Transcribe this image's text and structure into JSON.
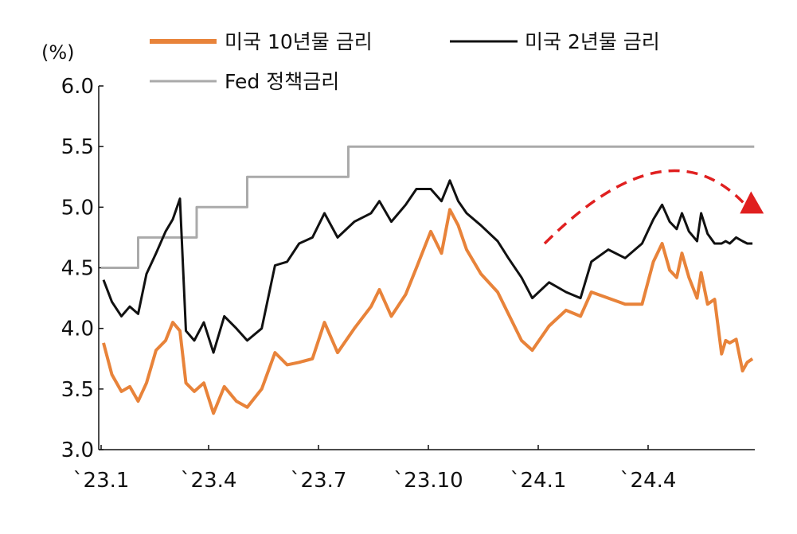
{
  "chart_data": {
    "type": "line",
    "unit_label": "(%)",
    "ylim": [
      3.0,
      6.0
    ],
    "yticks": [
      "6.0",
      "5.5",
      "5.0",
      "4.5",
      "4.0",
      "3.5",
      "3.0"
    ],
    "x_ticks": [
      "`23.1",
      "`23.4",
      "`23.7",
      "`23.10",
      "`24.1",
      "`24.4"
    ],
    "x_range_months": [
      "2023-01",
      "2024-09"
    ],
    "grid": false,
    "legend_placement": "top",
    "series": [
      {
        "name": "미국 10년물 금리",
        "color": "#E8833A",
        "points": [
          [
            "2023-01-03",
            3.88
          ],
          [
            "2023-01-10",
            3.62
          ],
          [
            "2023-01-18",
            3.48
          ],
          [
            "2023-01-25",
            3.52
          ],
          [
            "2023-02-01",
            3.4
          ],
          [
            "2023-02-08",
            3.55
          ],
          [
            "2023-02-16",
            3.82
          ],
          [
            "2023-02-24",
            3.9
          ],
          [
            "2023-03-02",
            4.05
          ],
          [
            "2023-03-08",
            3.98
          ],
          [
            "2023-03-13",
            3.55
          ],
          [
            "2023-03-20",
            3.48
          ],
          [
            "2023-03-28",
            3.55
          ],
          [
            "2023-04-05",
            3.3
          ],
          [
            "2023-04-14",
            3.52
          ],
          [
            "2023-04-24",
            3.4
          ],
          [
            "2023-05-03",
            3.35
          ],
          [
            "2023-05-15",
            3.5
          ],
          [
            "2023-05-26",
            3.8
          ],
          [
            "2023-06-05",
            3.7
          ],
          [
            "2023-06-15",
            3.72
          ],
          [
            "2023-06-26",
            3.75
          ],
          [
            "2023-07-06",
            4.05
          ],
          [
            "2023-07-17",
            3.8
          ],
          [
            "2023-07-31",
            4.0
          ],
          [
            "2023-08-14",
            4.18
          ],
          [
            "2023-08-21",
            4.32
          ],
          [
            "2023-08-31",
            4.1
          ],
          [
            "2023-09-12",
            4.28
          ],
          [
            "2023-09-21",
            4.5
          ],
          [
            "2023-10-03",
            4.8
          ],
          [
            "2023-10-12",
            4.62
          ],
          [
            "2023-10-19",
            4.98
          ],
          [
            "2023-10-26",
            4.85
          ],
          [
            "2023-11-02",
            4.65
          ],
          [
            "2023-11-14",
            4.45
          ],
          [
            "2023-11-28",
            4.3
          ],
          [
            "2023-12-07",
            4.12
          ],
          [
            "2023-12-18",
            3.9
          ],
          [
            "2023-12-27",
            3.82
          ],
          [
            "2024-01-10",
            4.02
          ],
          [
            "2024-01-24",
            4.15
          ],
          [
            "2024-02-05",
            4.1
          ],
          [
            "2024-02-14",
            4.3
          ],
          [
            "2024-02-28",
            4.25
          ],
          [
            "2024-03-13",
            4.2
          ],
          [
            "2024-03-27",
            4.2
          ],
          [
            "2024-04-10",
            4.55
          ],
          [
            "2024-04-25",
            4.7
          ],
          [
            "2024-05-08",
            4.48
          ],
          [
            "2024-05-20",
            4.42
          ],
          [
            "2024-05-29",
            4.62
          ],
          [
            "2024-06-10",
            4.42
          ],
          [
            "2024-06-24",
            4.25
          ],
          [
            "2024-07-01",
            4.46
          ],
          [
            "2024-07-12",
            4.2
          ],
          [
            "2024-07-24",
            4.24
          ],
          [
            "2024-08-05",
            3.79
          ],
          [
            "2024-08-12",
            3.9
          ],
          [
            "2024-08-19",
            3.88
          ],
          [
            "2024-08-30",
            3.91
          ],
          [
            "2024-09-10",
            3.65
          ],
          [
            "2024-09-18",
            3.72
          ],
          [
            "2024-09-27",
            3.75
          ]
        ]
      },
      {
        "name": "미국 2년물 금리",
        "color": "#111111",
        "points": [
          [
            "2023-01-03",
            4.4
          ],
          [
            "2023-01-10",
            4.22
          ],
          [
            "2023-01-18",
            4.1
          ],
          [
            "2023-01-25",
            4.18
          ],
          [
            "2023-02-01",
            4.12
          ],
          [
            "2023-02-08",
            4.45
          ],
          [
            "2023-02-16",
            4.62
          ],
          [
            "2023-02-24",
            4.8
          ],
          [
            "2023-03-02",
            4.9
          ],
          [
            "2023-03-08",
            5.07
          ],
          [
            "2023-03-13",
            3.98
          ],
          [
            "2023-03-20",
            3.9
          ],
          [
            "2023-03-28",
            4.05
          ],
          [
            "2023-04-05",
            3.8
          ],
          [
            "2023-04-14",
            4.1
          ],
          [
            "2023-04-24",
            4.0
          ],
          [
            "2023-05-03",
            3.9
          ],
          [
            "2023-05-15",
            4.0
          ],
          [
            "2023-05-26",
            4.52
          ],
          [
            "2023-06-05",
            4.55
          ],
          [
            "2023-06-15",
            4.7
          ],
          [
            "2023-06-26",
            4.75
          ],
          [
            "2023-07-06",
            4.95
          ],
          [
            "2023-07-17",
            4.75
          ],
          [
            "2023-07-31",
            4.88
          ],
          [
            "2023-08-14",
            4.95
          ],
          [
            "2023-08-21",
            5.05
          ],
          [
            "2023-08-31",
            4.88
          ],
          [
            "2023-09-12",
            5.02
          ],
          [
            "2023-09-21",
            5.15
          ],
          [
            "2023-10-03",
            5.15
          ],
          [
            "2023-10-12",
            5.05
          ],
          [
            "2023-10-19",
            5.22
          ],
          [
            "2023-10-26",
            5.05
          ],
          [
            "2023-11-02",
            4.95
          ],
          [
            "2023-11-14",
            4.85
          ],
          [
            "2023-11-28",
            4.72
          ],
          [
            "2023-12-07",
            4.58
          ],
          [
            "2023-12-18",
            4.42
          ],
          [
            "2023-12-27",
            4.25
          ],
          [
            "2024-01-10",
            4.38
          ],
          [
            "2024-01-24",
            4.3
          ],
          [
            "2024-02-05",
            4.25
          ],
          [
            "2024-02-14",
            4.55
          ],
          [
            "2024-02-28",
            4.65
          ],
          [
            "2024-03-13",
            4.58
          ],
          [
            "2024-03-27",
            4.7
          ],
          [
            "2024-04-10",
            4.9
          ],
          [
            "2024-04-25",
            5.02
          ],
          [
            "2024-05-08",
            4.88
          ],
          [
            "2024-05-20",
            4.82
          ],
          [
            "2024-05-29",
            4.95
          ],
          [
            "2024-06-10",
            4.8
          ],
          [
            "2024-06-24",
            4.72
          ],
          [
            "2024-07-01",
            4.95
          ],
          [
            "2024-07-12",
            4.78
          ],
          [
            "2024-07-24",
            4.7
          ],
          [
            "2024-08-05",
            4.7
          ],
          [
            "2024-08-12",
            4.72
          ],
          [
            "2024-08-19",
            4.7
          ],
          [
            "2024-08-30",
            4.75
          ],
          [
            "2024-09-10",
            4.72
          ],
          [
            "2024-09-18",
            4.7
          ],
          [
            "2024-09-27",
            4.7
          ]
        ]
      },
      {
        "name": "Fed 정책금리",
        "color": "#AAAAAA",
        "step": true,
        "points": [
          [
            "2023-01-01",
            4.5
          ],
          [
            "2023-02-01",
            4.75
          ],
          [
            "2023-03-22",
            5.0
          ],
          [
            "2023-05-03",
            5.25
          ],
          [
            "2023-07-26",
            5.5
          ],
          [
            "2024-09-30",
            5.5
          ]
        ]
      }
    ],
    "annotation_arrow": {
      "style": "dashed-curve",
      "color": "#E02020",
      "from": [
        "2024-01-01",
        4.7
      ],
      "peak": [
        "2024-05-01",
        5.33
      ],
      "to": [
        "2024-09-30",
        5.0
      ]
    }
  }
}
